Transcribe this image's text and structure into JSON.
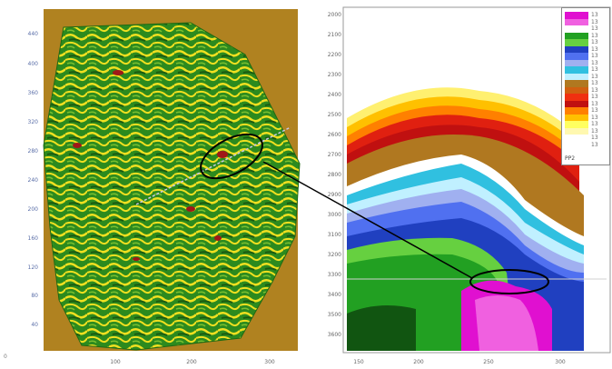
{
  "map": {
    "y_ticks": [
      "440",
      "400",
      "360",
      "320",
      "280",
      "240",
      "200",
      "160",
      "120",
      "80",
      "40"
    ],
    "x_ticks": [
      "100",
      "200",
      "300"
    ],
    "corner_label": "0"
  },
  "section": {
    "y_ticks": [
      "2000",
      "2100",
      "2200",
      "2300",
      "2400",
      "2500",
      "2600",
      "2700",
      "2800",
      "2900",
      "3000",
      "3100",
      "3200",
      "3300",
      "3400",
      "3500",
      "3600"
    ],
    "x_ticks": [
      "150",
      "200",
      "250",
      "300"
    ]
  },
  "legend": {
    "label": "PP2",
    "values": [
      "13",
      "13",
      "13",
      "13",
      "13",
      "13",
      "13",
      "13",
      "13",
      "13",
      "13",
      "13",
      "13",
      "13",
      "13",
      "13",
      "13",
      "13",
      "13",
      "13"
    ],
    "colors": [
      "#e010d0",
      "#f060e0",
      "#ffffff",
      "#22a022",
      "#66d040",
      "#2040c0",
      "#5070f0",
      "#a0b0f0",
      "#30c0e0",
      "#c0f0ff",
      "#b07820",
      "#d06010",
      "#f03010",
      "#c01010",
      "#ff8000",
      "#ffc000",
      "#ffff60",
      "#fff8b0",
      "#ffffff",
      "#ffffff"
    ]
  },
  "colors": {
    "map_background": "#b08220",
    "map_green": "#2c8a1e",
    "map_yellow": "#f0e020",
    "map_red": "#a01818",
    "section_magenta": "#e010d0",
    "section_green": "#22a022",
    "section_blue": "#2040c0",
    "section_red": "#e02010"
  }
}
